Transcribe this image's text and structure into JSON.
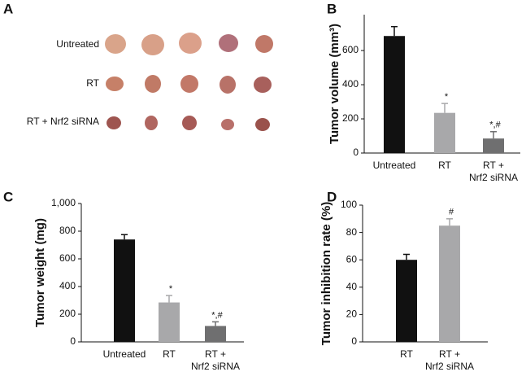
{
  "panel_a": {
    "label": "A",
    "rows": [
      "Untreated",
      "RT",
      "RT + Nrf2 siRNA"
    ]
  },
  "chart_data": [
    {
      "type": "bar",
      "panel_label": "B",
      "y_label": "Tumor volume (mm³)",
      "categories": [
        "Untreated",
        "RT",
        "RT + Nrf2 siRNA"
      ],
      "values": [
        685,
        235,
        85
      ],
      "errors": [
        55,
        55,
        40
      ],
      "value_annotations": [
        null,
        "*",
        "*,#"
      ],
      "colors": [
        "#111111",
        "#a8a8aa",
        "#6f6f70"
      ],
      "ylim": [
        0,
        810
      ],
      "yticks": [
        0,
        200,
        400,
        600
      ]
    },
    {
      "type": "bar",
      "panel_label": "C",
      "y_label": "Tumor weight (mg)",
      "categories": [
        "Untreated",
        "RT",
        "RT + Nrf2 siRNA"
      ],
      "values": [
        740,
        285,
        115
      ],
      "errors": [
        35,
        50,
        30
      ],
      "value_annotations": [
        null,
        "*",
        "*,#"
      ],
      "colors": [
        "#111111",
        "#a8a8aa",
        "#6f6f70"
      ],
      "ylim": [
        0,
        1000
      ],
      "yticks": [
        0,
        200,
        400,
        600,
        800,
        {
          "value": 1000,
          "label": "1,000"
        }
      ]
    },
    {
      "type": "bar",
      "panel_label": "D",
      "y_label": "Tumor inhibition rate (%)",
      "categories": [
        "RT",
        "RT + Nrf2 siRNA"
      ],
      "values": [
        60,
        85
      ],
      "errors": [
        4,
        5
      ],
      "value_annotations": [
        null,
        "#"
      ],
      "colors": [
        "#111111",
        "#a8a8aa"
      ],
      "ylim": [
        0,
        100
      ],
      "yticks": [
        0,
        20,
        40,
        60,
        80,
        100
      ]
    }
  ]
}
